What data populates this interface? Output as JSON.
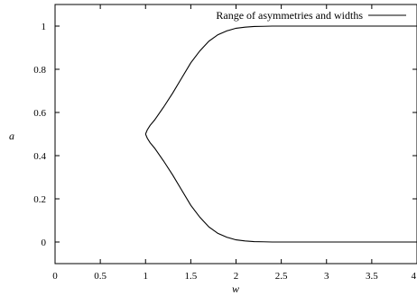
{
  "chart_data": {
    "type": "line",
    "title": "",
    "xlabel": "w",
    "ylabel": "a",
    "xlim": [
      0,
      4
    ],
    "ylim": [
      -0.1,
      1.1
    ],
    "x_ticks": [
      "0",
      "0.5",
      "1",
      "1.5",
      "2",
      "2.5",
      "3",
      "3.5",
      "4"
    ],
    "y_ticks": [
      "0",
      "0.2",
      "0.4",
      "0.6",
      "0.8",
      "1"
    ],
    "grid": false,
    "legend_position": "top-right",
    "legend_label": "Range of asymmetries and widths",
    "series": [
      {
        "name": "Range of asymmetries and widths",
        "branch": "upper",
        "x": [
          1.0,
          1.02,
          1.05,
          1.1,
          1.15,
          1.2,
          1.3,
          1.4,
          1.5,
          1.6,
          1.7,
          1.8,
          1.9,
          2.0,
          2.1,
          2.2,
          2.3,
          2.4,
          2.6,
          3.0,
          3.5,
          4.0
        ],
        "y": [
          0.5,
          0.52,
          0.54,
          0.565,
          0.595,
          0.625,
          0.69,
          0.76,
          0.83,
          0.885,
          0.93,
          0.96,
          0.978,
          0.99,
          0.995,
          0.998,
          0.999,
          1.0,
          1.0,
          1.0,
          1.0,
          1.0
        ]
      },
      {
        "name": "Range of asymmetries and widths",
        "branch": "lower",
        "x": [
          1.0,
          1.02,
          1.05,
          1.1,
          1.15,
          1.2,
          1.3,
          1.4,
          1.5,
          1.6,
          1.7,
          1.8,
          1.9,
          2.0,
          2.1,
          2.2,
          2.3,
          2.4,
          2.6,
          3.0,
          3.5,
          4.0
        ],
        "y": [
          0.5,
          0.48,
          0.46,
          0.435,
          0.405,
          0.375,
          0.31,
          0.24,
          0.17,
          0.115,
          0.07,
          0.04,
          0.022,
          0.01,
          0.005,
          0.002,
          0.001,
          0.0,
          0.0,
          0.0,
          0.0,
          0.0
        ]
      }
    ]
  }
}
